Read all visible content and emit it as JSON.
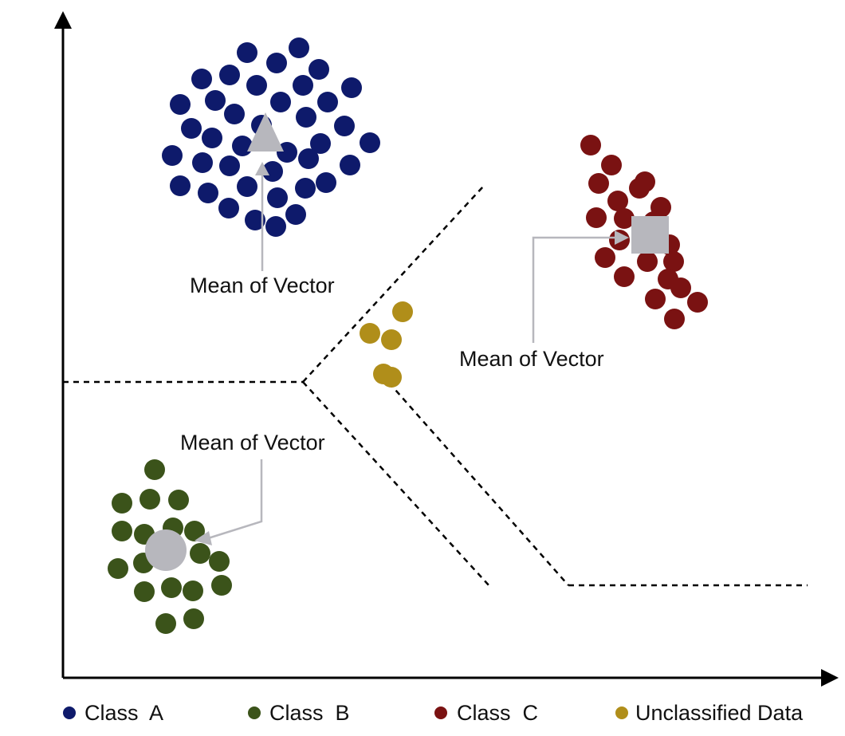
{
  "colors": {
    "class_a": "#0e1a6b",
    "class_b": "#3b531a",
    "class_c": "#7a1212",
    "unclassified": "#b08e1a",
    "mean_marker": "#b7b7bd",
    "axis": "#000000",
    "boundary": "#000000"
  },
  "callouts": {
    "class_a": "Mean of Vector",
    "class_b": "Mean of Vector",
    "class_c": "Mean of Vector"
  },
  "legend": {
    "class_a": "Class  A",
    "class_b": "Class  B",
    "class_c": "Class  C",
    "unclassified": "Unclassified Data"
  },
  "markers": {
    "class_a": "triangle",
    "class_b": "circle",
    "class_c": "square"
  }
}
